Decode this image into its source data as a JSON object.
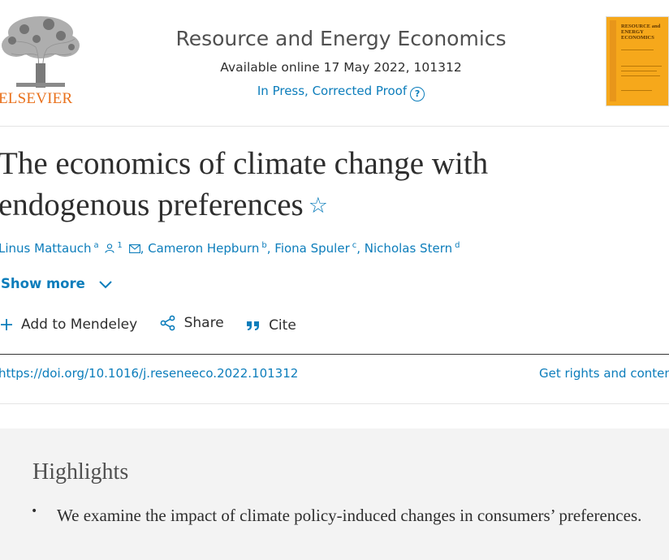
{
  "header": {
    "publisher": "ELSEVIER",
    "journal_title": "Resource and Energy Economics",
    "available_online": "Available online 17 May 2022, 101312",
    "status": "In Press, Corrected Proof",
    "help_glyph": "?",
    "cover": {
      "title": "RESOURCE and ENERGY ECONOMICS",
      "color": "#f6a81b"
    }
  },
  "article": {
    "title": "The economics of climate change with endogenous preferences",
    "star_glyph": "☆",
    "authors": [
      {
        "name": "Linus Mattauch",
        "sup": "a",
        "extra_sup": "1"
      },
      {
        "name": "Cameron Hepburn",
        "sup": "b"
      },
      {
        "name": "Fiona Spuler",
        "sup": "c"
      },
      {
        "name": "Nicholas Stern",
        "sup": "d"
      }
    ],
    "show_more": "Show more"
  },
  "actions": {
    "mendeley": "Add to Mendeley",
    "share": "Share",
    "cite": "Cite"
  },
  "links": {
    "doi": "https://doi.org/10.1016/j.reseneeco.2022.101312",
    "rights": "Get rights and content"
  },
  "highlights": {
    "heading": "Highlights",
    "items": [
      "We examine the impact of climate policy-induced changes in consumers’ preferences."
    ]
  },
  "colors": {
    "accent": "#0c7dbb",
    "publisher_orange": "#e9711c",
    "highlights_bg": "#f3f3f3"
  }
}
